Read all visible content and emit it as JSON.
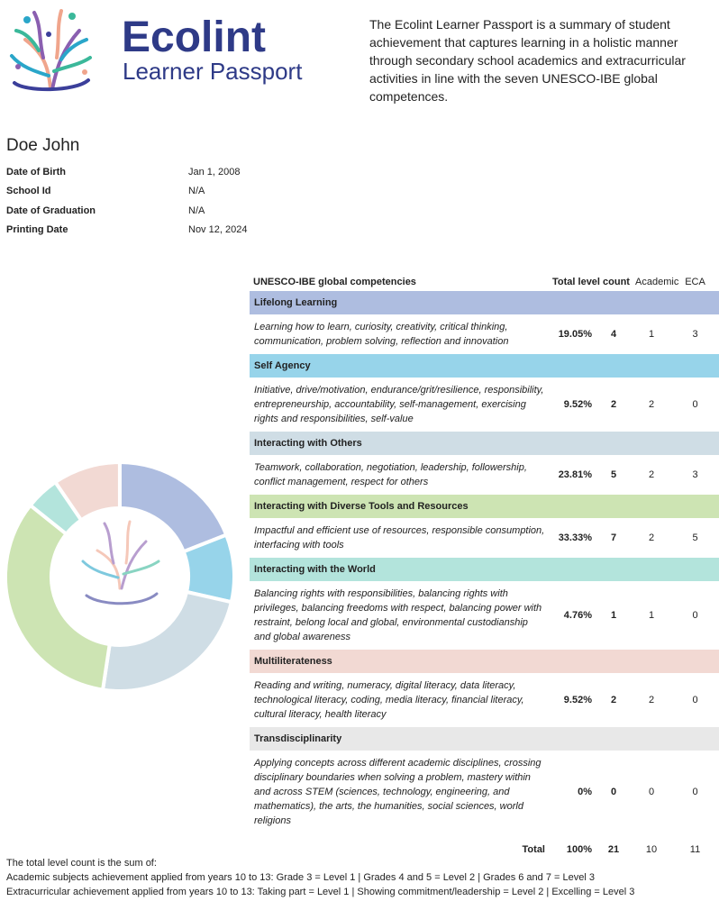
{
  "header": {
    "brand": "Ecolint",
    "subtitle": "Learner Passport",
    "description": "The Ecolint Learner Passport is a summary of student achievement that captures learning in a holistic manner through secondary school academics and extracurricular activities in line with the seven UNESCO-IBE global competences."
  },
  "student": {
    "name": "Doe John",
    "fields": [
      {
        "label": "Date of Birth",
        "value": "Jan 1, 2008"
      },
      {
        "label": "School Id",
        "value": "N/A"
      },
      {
        "label": "Date of Graduation",
        "value": "N/A"
      },
      {
        "label": "Printing Date",
        "value": "Nov 12, 2024"
      }
    ]
  },
  "table": {
    "columns": [
      "UNESCO-IBE global competencies",
      "Total level count",
      "Academic",
      "ECA"
    ],
    "rows": [
      {
        "name": "Lifelong Learning",
        "color": "#aebde0",
        "description": "Learning how to learn, curiosity, creativity, critical thinking, communication, problem solving, reflection and innovation",
        "share": {
          "value": 19.05,
          "label": "19.05%"
        },
        "count": 4,
        "academic": 1,
        "eca": 3
      },
      {
        "name": "Self Agency",
        "color": "#97d4ea",
        "description": "Initiative, drive/motivation, endurance/grit/resilience, responsibility, entrepreneurship, accountability, self-management, exercising rights and responsibilities, self-value",
        "share": {
          "value": 9.52,
          "label": "9.52%"
        },
        "count": 2,
        "academic": 2,
        "eca": 0
      },
      {
        "name": "Interacting with Others",
        "color": "#cfdde5",
        "description": "Teamwork, collaboration, negotiation, leadership, followership, conflict management, respect for others",
        "share": {
          "value": 23.81,
          "label": "23.81%"
        },
        "count": 5,
        "academic": 2,
        "eca": 3
      },
      {
        "name": "Interacting with Diverse Tools and Resources",
        "color": "#cde4b3",
        "description": "Impactful and efficient use of resources, responsible consumption, interfacing with tools",
        "share": {
          "value": 33.33,
          "label": "33.33%"
        },
        "count": 7,
        "academic": 2,
        "eca": 5
      },
      {
        "name": "Interacting with the World",
        "color": "#b3e4dc",
        "description": "Balancing rights with responsibilities, balancing rights with privileges, balancing freedoms with respect, balancing power with restraint, belong local and global, environmental custodianship and global awareness",
        "share": {
          "value": 4.76,
          "label": "4.76%"
        },
        "count": 1,
        "academic": 1,
        "eca": 0
      },
      {
        "name": "Multiliterateness",
        "color": "#f2d9d3",
        "description": "Reading and writing, numeracy, digital literacy, data literacy, technological literacy, coding, media literacy, financial literacy, cultural literacy, health literacy",
        "share": {
          "value": 9.52,
          "label": "9.52%"
        },
        "count": 2,
        "academic": 2,
        "eca": 0
      },
      {
        "name": "Transdisciplinarity",
        "color": "#e8e8e8",
        "description": "Applying concepts across different academic disciplines, crossing disciplinary boundaries when solving a problem, mastery within and across STEM (sciences, technology, engineering, and mathematics), the arts, the humanities, social sciences, world religions",
        "share": {
          "value": 0,
          "label": "0%"
        },
        "count": 0,
        "academic": 0,
        "eca": 0
      }
    ],
    "total": {
      "label": "Total",
      "share": {
        "value": 100,
        "label": "100%"
      },
      "count": 21,
      "academic": 10,
      "eca": 11
    }
  },
  "footer": {
    "lines": [
      "The total level count is the sum of:",
      "Academic subjects achievement applied from years 10 to 13: Grade 3 = Level 1 | Grades 4 and 5 = Level 2 | Grades 6 and 7 = Level 3",
      "Extracurricular achievement applied from years 10 to 13: Taking part = Level 1 | Showing commitment/leadership = Level 2 | Excelling = Level 3"
    ]
  }
}
